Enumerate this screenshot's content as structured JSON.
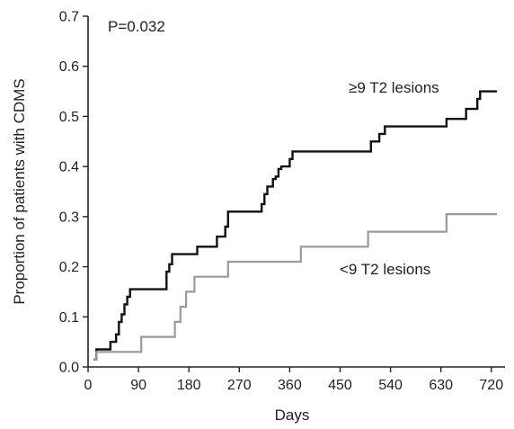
{
  "chart_data": {
    "type": "line",
    "step": true,
    "xlabel": "Days",
    "ylabel": "Proportion of patients with CDMS",
    "xlim": [
      0,
      730
    ],
    "ylim": [
      0,
      0.7
    ],
    "xticks": [
      0,
      90,
      180,
      270,
      360,
      450,
      540,
      630,
      720
    ],
    "yticks": [
      0.0,
      0.1,
      0.2,
      0.3,
      0.4,
      0.5,
      0.6,
      0.7
    ],
    "ytick_labels": [
      "0.0",
      "0.1",
      "0.2",
      "0.3",
      "0.4",
      "0.5",
      "0.6",
      "0.7"
    ],
    "grid": false,
    "annotations": [
      {
        "text": "P=0.032"
      }
    ],
    "series": [
      {
        "name": "≥9 T2 lesions",
        "color": "#111111",
        "x": [
          10,
          15,
          40,
          50,
          55,
          60,
          65,
          70,
          75,
          80,
          140,
          145,
          150,
          180,
          195,
          210,
          230,
          245,
          250,
          260,
          300,
          310,
          315,
          320,
          330,
          335,
          340,
          345,
          360,
          365,
          500,
          505,
          520,
          530,
          570,
          640,
          675,
          695,
          700,
          730
        ],
        "y": [
          0.015,
          0.035,
          0.05,
          0.065,
          0.09,
          0.105,
          0.125,
          0.14,
          0.155,
          0.155,
          0.19,
          0.205,
          0.225,
          0.225,
          0.24,
          0.24,
          0.26,
          0.28,
          0.31,
          0.31,
          0.31,
          0.325,
          0.345,
          0.36,
          0.375,
          0.38,
          0.395,
          0.4,
          0.415,
          0.43,
          0.43,
          0.45,
          0.465,
          0.48,
          0.48,
          0.495,
          0.515,
          0.535,
          0.55,
          0.55
        ]
      },
      {
        "name": "<9 T2 lesions",
        "color": "#9a9a9a",
        "x": [
          10,
          15,
          50,
          95,
          155,
          165,
          175,
          190,
          250,
          260,
          380,
          390,
          500,
          510,
          640,
          650,
          730
        ],
        "y": [
          0.015,
          0.03,
          0.03,
          0.06,
          0.09,
          0.12,
          0.15,
          0.18,
          0.21,
          0.21,
          0.24,
          0.24,
          0.27,
          0.27,
          0.305,
          0.305,
          0.305
        ]
      }
    ]
  }
}
